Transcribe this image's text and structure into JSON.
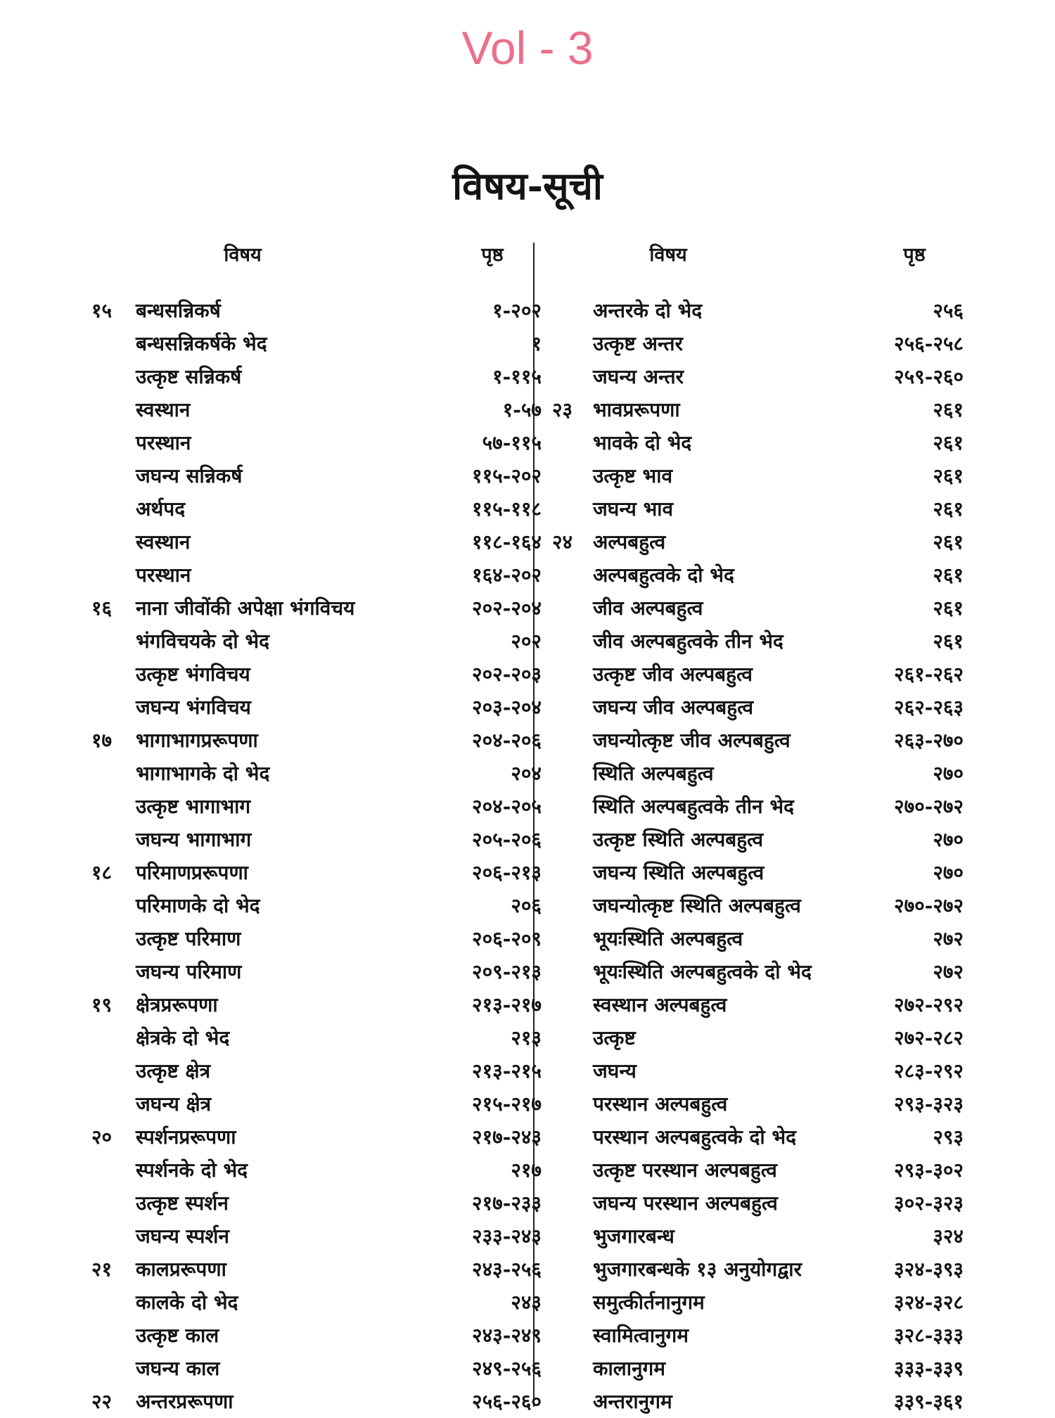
{
  "vol_label": "Vol - 3",
  "heading": "विषय-सूची",
  "column_headers": {
    "subject": "विषय",
    "page": "पृष्ठ"
  },
  "left_column": [
    {
      "num": "१५",
      "title": "बन्धसन्निकर्ष",
      "page": "१-२०२"
    },
    {
      "num": "",
      "title": "बन्धसन्निकर्षके भेद",
      "page": "१"
    },
    {
      "num": "",
      "title": "उत्कृष्ट सन्निकर्ष",
      "page": "१-११५"
    },
    {
      "num": "",
      "title": "स्वस्थान",
      "page": "१-५७"
    },
    {
      "num": "",
      "title": "परस्थान",
      "page": "५७-११५"
    },
    {
      "num": "",
      "title": "जघन्य सन्निकर्ष",
      "page": "११५-२०२"
    },
    {
      "num": "",
      "title": "अर्थपद",
      "page": "११५-११८"
    },
    {
      "num": "",
      "title": "स्वस्थान",
      "page": "११८-१६४"
    },
    {
      "num": "",
      "title": "परस्थान",
      "page": "१६४-२०२"
    },
    {
      "num": "१६",
      "title": "नाना जीवोंकी अपेक्षा भंगविचय",
      "page": "२०२-२०४"
    },
    {
      "num": "",
      "title": "भंगविचयके दो भेद",
      "page": "२०२"
    },
    {
      "num": "",
      "title": "उत्कृष्ट भंगविचय",
      "page": "२०२-२०३"
    },
    {
      "num": "",
      "title": "जघन्य भंगविचय",
      "page": "२०३-२०४"
    },
    {
      "num": "१७",
      "title": "भागाभागप्ररूपणा",
      "page": "२०४-२०६"
    },
    {
      "num": "",
      "title": "भागाभागके दो भेद",
      "page": "२०४"
    },
    {
      "num": "",
      "title": "उत्कृष्ट भागाभाग",
      "page": "२०४-२०५"
    },
    {
      "num": "",
      "title": "जघन्य भागाभाग",
      "page": "२०५-२०६"
    },
    {
      "num": "१८",
      "title": "परिमाणप्ररूपणा",
      "page": "२०६-२१३"
    },
    {
      "num": "",
      "title": "परिमाणके दो भेद",
      "page": "२०६"
    },
    {
      "num": "",
      "title": "उत्कृष्ट परिमाण",
      "page": "२०६-२०९"
    },
    {
      "num": "",
      "title": "जघन्य परिमाण",
      "page": "२०९-२१३"
    },
    {
      "num": "१९",
      "title": "क्षेत्रप्ररूपणा",
      "page": "२१३-२१७"
    },
    {
      "num": "",
      "title": "क्षेत्रके दो भेद",
      "page": "२१३"
    },
    {
      "num": "",
      "title": "उत्कृष्ट क्षेत्र",
      "page": "२१३-२१५"
    },
    {
      "num": "",
      "title": "जघन्य क्षेत्र",
      "page": "२१५-२१७"
    },
    {
      "num": "२०",
      "title": "स्पर्शनप्ररूपणा",
      "page": "२१७-२४३"
    },
    {
      "num": "",
      "title": "स्पर्शनके दो भेद",
      "page": "२१७"
    },
    {
      "num": "",
      "title": "उत्कृष्ट स्पर्शन",
      "page": "२१७-२३३"
    },
    {
      "num": "",
      "title": "जघन्य स्पर्शन",
      "page": "२३३-२४३"
    },
    {
      "num": "२१",
      "title": "कालप्ररूपणा",
      "page": "२४३-२५६"
    },
    {
      "num": "",
      "title": "कालके दो भेद",
      "page": "२४३"
    },
    {
      "num": "",
      "title": "उत्कृष्ट काल",
      "page": "२४३-२४९"
    },
    {
      "num": "",
      "title": "जघन्य काल",
      "page": "२४९-२५६"
    },
    {
      "num": "२२",
      "title": "अन्तरप्ररूपणा",
      "page": "२५६-२६०"
    }
  ],
  "right_column": [
    {
      "num": "",
      "title": "अन्तरके दो भेद",
      "page": "२५६"
    },
    {
      "num": "",
      "title": "उत्कृष्ट अन्तर",
      "page": "२५६-२५८"
    },
    {
      "num": "",
      "title": "जघन्य अन्तर",
      "page": "२५९-२६०"
    },
    {
      "num": "२३",
      "title": "भावप्ररूपणा",
      "page": "२६१"
    },
    {
      "num": "",
      "title": "भावके दो भेद",
      "page": "२६१"
    },
    {
      "num": "",
      "title": "उत्कृष्ट भाव",
      "page": "२६१"
    },
    {
      "num": "",
      "title": "जघन्य भाव",
      "page": "२६१"
    },
    {
      "num": "२४",
      "title": "अल्पबहुत्व",
      "page": "२६१"
    },
    {
      "num": "",
      "title": "अल्पबहुत्वके दो भेद",
      "page": "२६१"
    },
    {
      "num": "",
      "title": "जीव अल्पबहुत्व",
      "page": "२६१"
    },
    {
      "num": "",
      "title": "जीव अल्पबहुत्वके तीन भेद",
      "page": "२६१"
    },
    {
      "num": "",
      "title": "उत्कृष्ट जीव अल्पबहुत्व",
      "page": "२६१-२६२"
    },
    {
      "num": "",
      "title": "जघन्य जीव अल्पबहुत्व",
      "page": "२६२-२६३"
    },
    {
      "num": "",
      "title": "जघन्योत्कृष्ट जीव अल्पबहुत्व",
      "page": "२६३-२७०"
    },
    {
      "num": "",
      "title": "स्थिति अल्पबहुत्व",
      "page": "२७०"
    },
    {
      "num": "",
      "title": "स्थिति अल्पबहुत्वके तीन भेद",
      "page": "२७०-२७२"
    },
    {
      "num": "",
      "title": "उत्कृष्ट स्थिति अल्पबहुत्व",
      "page": "२७०"
    },
    {
      "num": "",
      "title": "जघन्य स्थिति अल्पबहुत्व",
      "page": "२७०"
    },
    {
      "num": "",
      "title": "जघन्योत्कृष्ट स्थिति अल्पबहुत्व",
      "page": "२७०-२७२"
    },
    {
      "num": "",
      "title": "भूयःस्थिति अल्पबहुत्व",
      "page": "२७२"
    },
    {
      "num": "",
      "title": "भूयःस्थिति अल्पबहुत्वके दो भेद",
      "page": "२७२"
    },
    {
      "num": "",
      "title": "स्वस्थान अल्पबहुत्व",
      "page": "२७२-२९२"
    },
    {
      "num": "",
      "title": "उत्कृष्ट",
      "page": "२७२-२८२"
    },
    {
      "num": "",
      "title": "जघन्य",
      "page": "२८३-२९२"
    },
    {
      "num": "",
      "title": "परस्थान अल्पबहुत्व",
      "page": "२९३-३२३"
    },
    {
      "num": "",
      "title": "परस्थान अल्पबहुत्वके दो भेद",
      "page": "२९३"
    },
    {
      "num": "",
      "title": "उत्कृष्ट परस्थान अल्पबहुत्व",
      "page": "२९३-३०२"
    },
    {
      "num": "",
      "title": "जघन्य परस्थान अल्पबहुत्व",
      "page": "३०२-३२३"
    },
    {
      "num": "",
      "title": "भुजगारबन्ध",
      "page": "३२४"
    },
    {
      "num": "",
      "title": "भुजगारबन्धके १३ अनुयोगद्वार",
      "page": "३२४-३९३"
    },
    {
      "num": "",
      "title": "समुत्कीर्तनानुगम",
      "page": "३२४-३२८"
    },
    {
      "num": "",
      "title": "स्वामित्वानुगम",
      "page": "३२८-३३३"
    },
    {
      "num": "",
      "title": "कालानुगम",
      "page": "३३३-३३९"
    },
    {
      "num": "",
      "title": "अन्तरानुगम",
      "page": "३३९-३६१"
    }
  ],
  "colors": {
    "vol_label": "#ec6f8c",
    "text": "#141414"
  }
}
